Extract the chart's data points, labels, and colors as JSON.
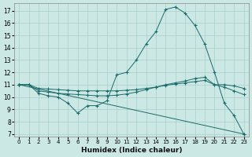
{
  "xlabel": "Humidex (Indice chaleur)",
  "background_color": "#cce8e5",
  "grid_color": "#aacfcc",
  "line_color": "#1a6b6b",
  "xlim": [
    -0.5,
    23.5
  ],
  "ylim": [
    6.8,
    17.6
  ],
  "yticks": [
    7,
    8,
    9,
    10,
    11,
    12,
    13,
    14,
    15,
    16,
    17
  ],
  "xticks": [
    0,
    1,
    2,
    3,
    4,
    5,
    6,
    7,
    8,
    9,
    10,
    11,
    12,
    13,
    14,
    15,
    16,
    17,
    18,
    19,
    20,
    21,
    22,
    23
  ],
  "lines": [
    {
      "x": [
        0,
        1,
        2,
        3,
        4,
        5,
        6,
        7,
        8,
        9,
        10,
        11,
        12,
        13,
        14,
        15,
        16,
        17,
        18,
        19,
        20,
        21,
        22,
        23
      ],
      "y": [
        11,
        11,
        10.3,
        10.1,
        10.0,
        9.5,
        8.7,
        9.3,
        9.3,
        9.7,
        11.8,
        12.0,
        13.0,
        14.3,
        15.3,
        17.1,
        17.3,
        16.8,
        15.8,
        14.3,
        12.0,
        9.5,
        8.5,
        7.0
      ],
      "marker": true
    },
    {
      "x": [
        0,
        1,
        2,
        3,
        4,
        5,
        6,
        7,
        8,
        9,
        10,
        11,
        12,
        13,
        14,
        15,
        16,
        17,
        18,
        19,
        20,
        21,
        22,
        23
      ],
      "y": [
        11,
        11,
        10.5,
        10.4,
        10.3,
        10.25,
        10.2,
        10.15,
        10.1,
        10.1,
        10.15,
        10.25,
        10.4,
        10.6,
        10.8,
        11.0,
        11.15,
        11.3,
        11.5,
        11.6,
        11.0,
        10.8,
        10.5,
        10.2
      ],
      "marker": true
    },
    {
      "x": [
        0,
        1,
        2,
        3,
        4,
        5,
        6,
        7,
        8,
        9,
        10,
        11,
        12,
        13,
        14,
        15,
        16,
        17,
        18,
        19,
        20,
        21,
        22,
        23
      ],
      "y": [
        11,
        11,
        10.7,
        10.65,
        10.6,
        10.55,
        10.5,
        10.5,
        10.5,
        10.5,
        10.5,
        10.55,
        10.6,
        10.7,
        10.8,
        10.95,
        11.05,
        11.15,
        11.25,
        11.35,
        11.0,
        11.0,
        10.9,
        10.7
      ],
      "marker": true
    },
    {
      "x": [
        0,
        23
      ],
      "y": [
        11,
        7.0
      ],
      "marker": true
    }
  ]
}
